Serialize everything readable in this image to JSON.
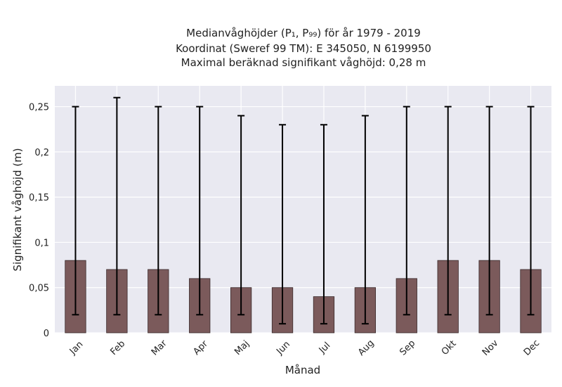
{
  "chart_data": {
    "type": "bar",
    "title_lines": [
      "Medianvåghöjder (P₁, P₉₉) för år 1979 - 2019",
      "Koordinat (Sweref 99 TM): E 345050, N 6199950",
      "Maximal beräknad signifikant våghöjd: 0,28 m"
    ],
    "xlabel": "Månad",
    "ylabel": "Signifikant våghöjd (m)",
    "categories": [
      "Jan",
      "Feb",
      "Mar",
      "Apr",
      "Maj",
      "Jun",
      "Jul",
      "Aug",
      "Sep",
      "Okt",
      "Nov",
      "Dec"
    ],
    "values": [
      0.08,
      0.07,
      0.07,
      0.06,
      0.05,
      0.05,
      0.04,
      0.05,
      0.06,
      0.08,
      0.08,
      0.07
    ],
    "p1": [
      0.02,
      0.02,
      0.02,
      0.02,
      0.02,
      0.01,
      0.01,
      0.01,
      0.02,
      0.02,
      0.02,
      0.02
    ],
    "p99": [
      0.25,
      0.26,
      0.25,
      0.25,
      0.24,
      0.23,
      0.23,
      0.24,
      0.25,
      0.25,
      0.25,
      0.25
    ],
    "yticks": [
      0,
      0.05,
      0.1,
      0.15,
      0.2,
      0.25
    ],
    "ytick_labels": [
      "0",
      "0,05",
      "0,1",
      "0,15",
      "0,2",
      "0,25"
    ],
    "ylim": [
      0,
      0.273
    ],
    "grid": true,
    "colors": {
      "bar": "#7b5a5b",
      "bar_edge": "#3a2a2b",
      "plot_bg": "#e9e9f1",
      "grid": "#ffffff",
      "errorbar": "#000000"
    }
  }
}
